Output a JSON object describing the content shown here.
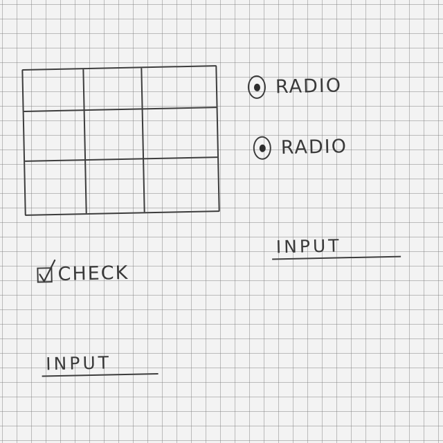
{
  "radios": [
    {
      "label": "RADIO",
      "checked": true
    },
    {
      "label": "RADIO",
      "checked": true
    }
  ],
  "checkbox": {
    "label": "CHECK",
    "checked": true
  },
  "inputs": [
    {
      "label": "INPUT"
    },
    {
      "label": "INPUT"
    }
  ],
  "table": {
    "rows": 3,
    "columns": 3
  },
  "colors": {
    "paper": "#f3f3f3",
    "grid": "#787878",
    "ink": "#3a3a3a"
  },
  "icons": {
    "checkmark": "checkmark-icon",
    "radio_selected": "radio-dot-icon"
  }
}
